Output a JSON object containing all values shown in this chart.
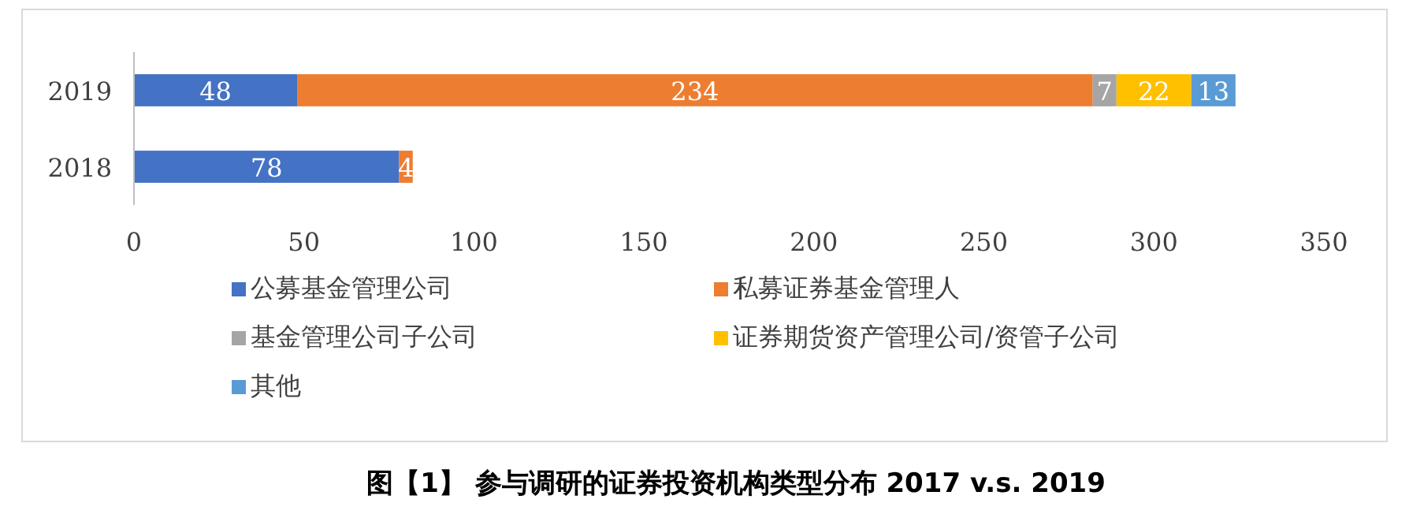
{
  "chart_data": {
    "type": "bar",
    "orientation": "horizontal",
    "stacked": true,
    "title": "图【1】 参与调研的证券投资机构类型分布 2017 v.s. 2019",
    "categories": [
      "2019",
      "2018"
    ],
    "series": [
      {
        "name": "公募基金管理公司",
        "color": "#4472c4",
        "values": [
          48,
          78
        ]
      },
      {
        "name": "私募证券基金管理人",
        "color": "#ed7d31",
        "values": [
          234,
          4
        ]
      },
      {
        "name": "基金管理公司子公司",
        "color": "#a5a5a5",
        "values": [
          7,
          null
        ]
      },
      {
        "name": "证券期货资产管理公司/资管子公司",
        "color": "#ffc000",
        "values": [
          22,
          null
        ]
      },
      {
        "name": "其他",
        "color": "#5b9bd5",
        "values": [
          13,
          null
        ]
      }
    ],
    "xlim": [
      0,
      350
    ],
    "xticks": [
      0,
      50,
      100,
      150,
      200,
      250,
      300,
      350
    ],
    "data_labels": true,
    "legend": "bottom"
  }
}
